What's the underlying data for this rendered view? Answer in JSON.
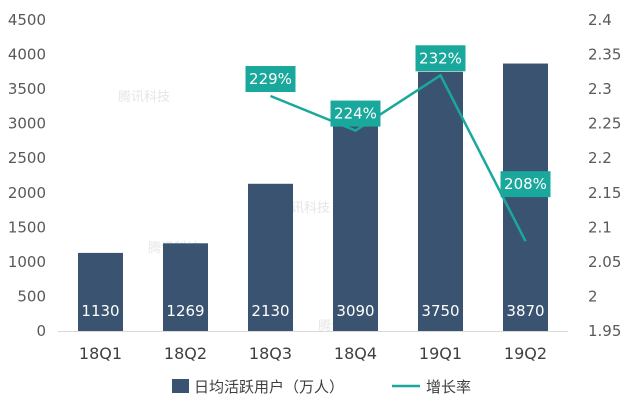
{
  "chart_data": {
    "type": "bar",
    "categories": [
      "18Q1",
      "18Q2",
      "18Q3",
      "18Q4",
      "19Q1",
      "19Q2"
    ],
    "series": [
      {
        "name": "日均活跃用户（万人）",
        "type": "bar",
        "axis": "left",
        "values": [
          1130,
          1269,
          2130,
          3090,
          3750,
          3870
        ],
        "labels": [
          "1130",
          "1269",
          "2130",
          "3090",
          "3750",
          "3870"
        ],
        "color": "#3a5370"
      },
      {
        "name": "增长率",
        "type": "line",
        "axis": "right",
        "values": [
          null,
          null,
          2.29,
          2.24,
          2.32,
          2.08
        ],
        "labels": [
          null,
          null,
          "229%",
          "224%",
          "232%",
          "208%"
        ],
        "color": "#1aa89c"
      }
    ],
    "y_left": {
      "min": 0,
      "max": 4500,
      "ticks": [
        0,
        500,
        1000,
        1500,
        2000,
        2500,
        3000,
        3500,
        4000,
        4500
      ],
      "tick_labels": [
        "0",
        "500",
        "1000",
        "1500",
        "2000",
        "2500",
        "3000",
        "3500",
        "4000",
        "4500"
      ]
    },
    "y_right": {
      "min": 1.95,
      "max": 2.4,
      "ticks": [
        1.95,
        2,
        2.05,
        2.1,
        2.15,
        2.2,
        2.25,
        2.3,
        2.35,
        2.4
      ],
      "tick_labels": [
        "1.95",
        "2",
        "2.05",
        "2.1",
        "2.15",
        "2.2",
        "2.25",
        "2.3",
        "2.35",
        "2.4"
      ]
    },
    "grid": false,
    "legend": "bottom",
    "watermark": "腾讯科技"
  }
}
